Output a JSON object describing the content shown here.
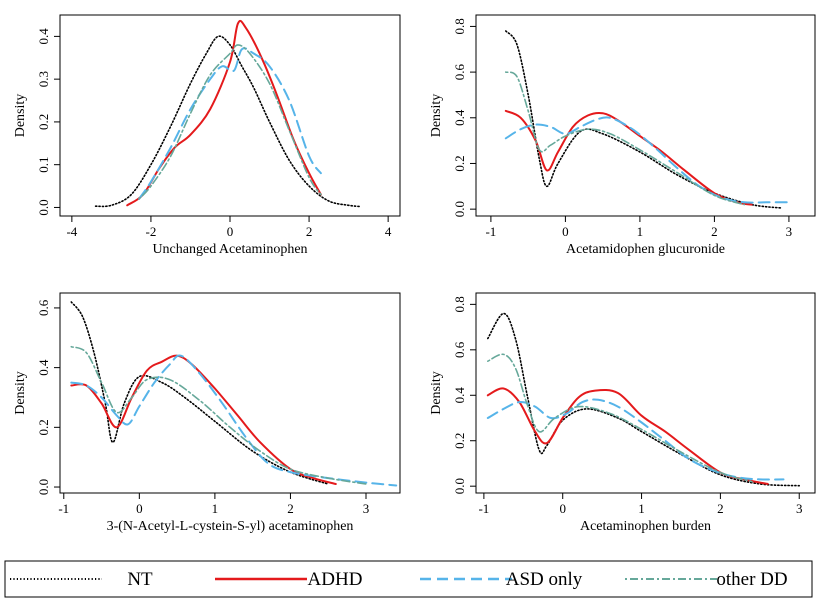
{
  "colors": {
    "NT": "#000000",
    "ADHD": "#e41a1c",
    "ASD only": "#56b4e9",
    "other DD": "#66a89a"
  },
  "legend": {
    "placement": "bottom",
    "items": [
      {
        "name": "NT",
        "style": "dotted"
      },
      {
        "name": "ADHD",
        "style": "solid"
      },
      {
        "name": "ASD only",
        "style": "dashed"
      },
      {
        "name": "other DD",
        "style": "dotdash"
      }
    ]
  },
  "chart_data": [
    {
      "type": "line",
      "xlabel": "Unchanged Acetaminophen",
      "ylabel": "Density",
      "xlim": [
        -4.3,
        4.3
      ],
      "ylim": [
        -0.02,
        0.45
      ],
      "xticks": [
        -4,
        -2,
        0,
        2,
        4
      ],
      "yticks": [
        0.0,
        0.1,
        0.2,
        0.3,
        0.4
      ],
      "series": [
        {
          "name": "NT",
          "x": [
            -3.4,
            -3.0,
            -2.5,
            -2.0,
            -1.5,
            -1.0,
            -0.6,
            -0.3,
            0.0,
            0.3,
            0.6,
            1.0,
            1.5,
            2.0,
            2.5,
            3.0,
            3.3
          ],
          "y": [
            0.003,
            0.005,
            0.03,
            0.1,
            0.19,
            0.29,
            0.36,
            0.4,
            0.38,
            0.33,
            0.28,
            0.2,
            0.11,
            0.05,
            0.015,
            0.005,
            0.002
          ]
        },
        {
          "name": "ADHD",
          "x": [
            -2.6,
            -2.2,
            -1.8,
            -1.4,
            -1.0,
            -0.5,
            0.0,
            0.2,
            0.4,
            0.8,
            1.2,
            1.6,
            2.0,
            2.3
          ],
          "y": [
            0.005,
            0.03,
            0.09,
            0.14,
            0.17,
            0.23,
            0.34,
            0.43,
            0.42,
            0.35,
            0.26,
            0.16,
            0.08,
            0.03
          ]
        },
        {
          "name": "ASD only",
          "x": [
            -2.3,
            -2.0,
            -1.5,
            -1.0,
            -0.5,
            -0.2,
            0.1,
            0.3,
            0.6,
            1.0,
            1.5,
            2.0,
            2.3
          ],
          "y": [
            0.02,
            0.06,
            0.14,
            0.23,
            0.3,
            0.33,
            0.32,
            0.37,
            0.36,
            0.33,
            0.25,
            0.12,
            0.08
          ]
        },
        {
          "name": "other DD",
          "x": [
            -2.3,
            -2.0,
            -1.5,
            -1.0,
            -0.5,
            0.0,
            0.2,
            0.5,
            1.0,
            1.5,
            2.0,
            2.3
          ],
          "y": [
            0.02,
            0.05,
            0.12,
            0.22,
            0.31,
            0.36,
            0.38,
            0.36,
            0.29,
            0.18,
            0.07,
            0.03
          ]
        }
      ]
    },
    {
      "type": "line",
      "xlabel": "Acetamidophen glucuronide",
      "ylabel": "Density",
      "xlim": [
        -1.2,
        3.35
      ],
      "ylim": [
        -0.03,
        0.85
      ],
      "xticks": [
        -1,
        0,
        1,
        2,
        3
      ],
      "yticks": [
        0.0,
        0.2,
        0.4,
        0.6,
        0.8
      ],
      "series": [
        {
          "name": "NT",
          "x": [
            -0.8,
            -0.65,
            -0.5,
            -0.35,
            -0.25,
            -0.1,
            0.2,
            0.5,
            1.0,
            1.5,
            2.0,
            2.5,
            2.9
          ],
          "y": [
            0.78,
            0.72,
            0.5,
            0.22,
            0.1,
            0.2,
            0.34,
            0.33,
            0.25,
            0.15,
            0.07,
            0.02,
            0.005
          ]
        },
        {
          "name": "ADHD",
          "x": [
            -0.8,
            -0.6,
            -0.4,
            -0.25,
            -0.1,
            0.1,
            0.3,
            0.5,
            0.7,
            1.0,
            1.3,
            1.6,
            2.0,
            2.3,
            2.5
          ],
          "y": [
            0.43,
            0.4,
            0.3,
            0.17,
            0.25,
            0.36,
            0.41,
            0.42,
            0.39,
            0.32,
            0.25,
            0.17,
            0.07,
            0.03,
            0.02
          ]
        },
        {
          "name": "ASD only",
          "x": [
            -0.8,
            -0.6,
            -0.4,
            -0.2,
            0.0,
            0.2,
            0.4,
            0.6,
            0.9,
            1.2,
            1.5,
            1.8,
            2.1,
            2.4,
            2.7,
            3.0
          ],
          "y": [
            0.31,
            0.35,
            0.37,
            0.36,
            0.33,
            0.36,
            0.39,
            0.4,
            0.35,
            0.27,
            0.18,
            0.1,
            0.05,
            0.03,
            0.03,
            0.03
          ]
        },
        {
          "name": "other DD",
          "x": [
            -0.8,
            -0.65,
            -0.5,
            -0.35,
            -0.2,
            0.0,
            0.3,
            0.6,
            1.0,
            1.5,
            2.0,
            2.4
          ],
          "y": [
            0.6,
            0.58,
            0.43,
            0.26,
            0.28,
            0.32,
            0.35,
            0.33,
            0.26,
            0.16,
            0.06,
            0.02
          ]
        }
      ]
    },
    {
      "type": "line",
      "xlabel": "3-(N-Acetyl-L-cystein-S-yl) acetaminophen",
      "ylabel": "Density",
      "xlim": [
        -1.05,
        3.45
      ],
      "ylim": [
        -0.02,
        0.65
      ],
      "xticks": [
        -1,
        0,
        1,
        2,
        3
      ],
      "yticks": [
        0.0,
        0.2,
        0.4,
        0.6
      ],
      "series": [
        {
          "name": "NT",
          "x": [
            -0.9,
            -0.75,
            -0.6,
            -0.45,
            -0.35,
            -0.2,
            0.0,
            0.3,
            0.6,
            1.0,
            1.5,
            2.0,
            2.5
          ],
          "y": [
            0.62,
            0.57,
            0.45,
            0.28,
            0.15,
            0.28,
            0.37,
            0.35,
            0.3,
            0.22,
            0.12,
            0.05,
            0.01
          ]
        },
        {
          "name": "ADHD",
          "x": [
            -0.9,
            -0.7,
            -0.5,
            -0.3,
            -0.1,
            0.1,
            0.3,
            0.5,
            0.7,
            1.0,
            1.3,
            1.6,
            2.0,
            2.3,
            2.6
          ],
          "y": [
            0.34,
            0.34,
            0.28,
            0.2,
            0.3,
            0.39,
            0.42,
            0.44,
            0.41,
            0.33,
            0.24,
            0.15,
            0.06,
            0.03,
            0.01
          ]
        },
        {
          "name": "ASD only",
          "x": [
            -0.9,
            -0.7,
            -0.5,
            -0.3,
            -0.15,
            0.0,
            0.2,
            0.4,
            0.55,
            0.8,
            1.1,
            1.4,
            1.7,
            2.0,
            2.5,
            3.0,
            3.4
          ],
          "y": [
            0.35,
            0.34,
            0.3,
            0.24,
            0.21,
            0.27,
            0.35,
            0.41,
            0.44,
            0.38,
            0.28,
            0.17,
            0.08,
            0.05,
            0.03,
            0.015,
            0.005
          ]
        },
        {
          "name": "other DD",
          "x": [
            -0.9,
            -0.7,
            -0.5,
            -0.3,
            -0.1,
            0.1,
            0.4,
            0.8,
            1.2,
            1.6,
            2.0,
            2.5,
            3.0
          ],
          "y": [
            0.47,
            0.45,
            0.35,
            0.25,
            0.3,
            0.36,
            0.36,
            0.29,
            0.2,
            0.12,
            0.06,
            0.03,
            0.01
          ]
        }
      ]
    },
    {
      "type": "line",
      "xlabel": "Acetaminophen burden",
      "ylabel": "Density",
      "xlim": [
        -1.1,
        3.2
      ],
      "ylim": [
        -0.03,
        0.85
      ],
      "xticks": [
        -1,
        0,
        1,
        2,
        3
      ],
      "yticks": [
        0.0,
        0.2,
        0.4,
        0.6,
        0.8
      ],
      "series": [
        {
          "name": "NT",
          "x": [
            -0.95,
            -0.75,
            -0.6,
            -0.45,
            -0.3,
            -0.2,
            0.0,
            0.3,
            0.7,
            1.0,
            1.5,
            2.0,
            2.5,
            3.0
          ],
          "y": [
            0.65,
            0.76,
            0.65,
            0.4,
            0.16,
            0.18,
            0.29,
            0.34,
            0.3,
            0.24,
            0.14,
            0.05,
            0.01,
            0.002
          ]
        },
        {
          "name": "ADHD",
          "x": [
            -0.95,
            -0.75,
            -0.55,
            -0.35,
            -0.2,
            0.0,
            0.2,
            0.4,
            0.7,
            1.0,
            1.3,
            1.6,
            2.0,
            2.3,
            2.6
          ],
          "y": [
            0.4,
            0.43,
            0.37,
            0.24,
            0.19,
            0.3,
            0.39,
            0.42,
            0.41,
            0.31,
            0.24,
            0.16,
            0.06,
            0.03,
            0.01
          ]
        },
        {
          "name": "ASD only",
          "x": [
            -0.95,
            -0.75,
            -0.55,
            -0.35,
            -0.15,
            0.05,
            0.25,
            0.45,
            0.7,
            1.0,
            1.3,
            1.6,
            1.9,
            2.2,
            2.5,
            2.8
          ],
          "y": [
            0.3,
            0.34,
            0.37,
            0.35,
            0.3,
            0.32,
            0.37,
            0.38,
            0.35,
            0.28,
            0.2,
            0.12,
            0.07,
            0.04,
            0.03,
            0.03
          ]
        },
        {
          "name": "other DD",
          "x": [
            -0.95,
            -0.75,
            -0.6,
            -0.45,
            -0.3,
            -0.1,
            0.2,
            0.6,
            1.0,
            1.5,
            2.0,
            2.4
          ],
          "y": [
            0.55,
            0.58,
            0.52,
            0.36,
            0.24,
            0.3,
            0.35,
            0.32,
            0.25,
            0.15,
            0.06,
            0.02
          ]
        }
      ]
    }
  ]
}
